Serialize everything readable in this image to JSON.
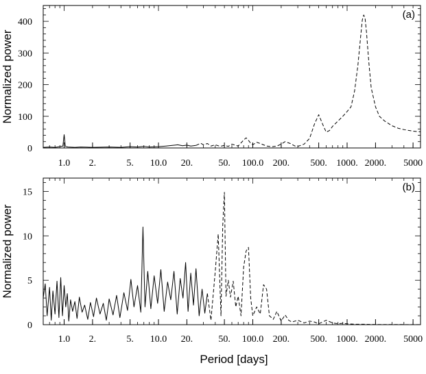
{
  "chart_data": [
    {
      "type": "line",
      "panel_label": "(a)",
      "xlabel": "",
      "ylabel": "Normalized power",
      "x_scale": "log",
      "xlim": [
        0.6,
        6000
      ],
      "ylim": [
        0,
        450
      ],
      "xticks": [
        1,
        2,
        5,
        10,
        20,
        50,
        100,
        200,
        500,
        1000,
        2000,
        5000
      ],
      "xtick_labels": [
        "1.0",
        "2.",
        "5.",
        "10.0",
        "20.",
        "50.",
        "100.0",
        "200.",
        "500.",
        "1000.",
        "2000.",
        "5000"
      ],
      "yticks": [
        0,
        100,
        200,
        300,
        400
      ],
      "ytick_labels": [
        "0",
        "100",
        "200",
        "300",
        "400"
      ],
      "grid": false,
      "series": [
        {
          "line_style": "solid",
          "x": [
            0.6,
            0.7,
            0.8,
            0.9,
            0.97,
            1.0,
            1.03,
            1.1,
            1.3,
            1.5,
            2,
            3,
            4,
            5,
            6,
            7,
            8,
            10,
            12,
            14,
            16,
            18,
            20,
            22,
            25
          ],
          "y": [
            2,
            3,
            2,
            4,
            6,
            42,
            5,
            3,
            2,
            3,
            2,
            3,
            2,
            4,
            3,
            5,
            3,
            4,
            6,
            8,
            10,
            7,
            9,
            6,
            8
          ]
        },
        {
          "line_style": "dashed",
          "x": [
            25,
            28,
            30,
            33,
            36,
            40,
            45,
            50,
            55,
            60,
            70,
            80,
            85,
            90,
            95,
            100,
            110,
            120,
            140,
            160,
            180,
            200,
            220,
            250,
            280,
            300,
            350,
            400,
            450,
            500,
            550,
            600,
            650,
            700,
            800,
            900,
            1000,
            1100,
            1200,
            1300,
            1400,
            1450,
            1500,
            1550,
            1600,
            1700,
            1800,
            2000,
            2200,
            2500,
            3000,
            3500,
            4000,
            5000,
            6000
          ],
          "y": [
            8,
            15,
            10,
            14,
            6,
            10,
            5,
            8,
            5,
            12,
            6,
            25,
            32,
            24,
            15,
            10,
            18,
            14,
            6,
            4,
            6,
            12,
            20,
            14,
            6,
            5,
            12,
            30,
            75,
            105,
            75,
            50,
            55,
            68,
            85,
            100,
            115,
            130,
            180,
            260,
            360,
            405,
            420,
            410,
            370,
            270,
            190,
            130,
            100,
            85,
            70,
            62,
            58,
            53,
            51
          ]
        }
      ]
    },
    {
      "type": "line",
      "panel_label": "(b)",
      "xlabel": "Period [days]",
      "ylabel": "Normalized power",
      "x_scale": "log",
      "xlim": [
        0.6,
        6000
      ],
      "ylim": [
        0,
        16.5
      ],
      "xticks": [
        1,
        2,
        5,
        10,
        20,
        50,
        100,
        200,
        500,
        1000,
        2000,
        5000
      ],
      "xtick_labels": [
        "1.0",
        "2.",
        "5.",
        "10.0",
        "20.",
        "50.",
        "100.0",
        "200.",
        "500.",
        "1000.",
        "2000.",
        "5000"
      ],
      "yticks": [
        0,
        5,
        10,
        15
      ],
      "ytick_labels": [
        "0",
        "5",
        "10",
        "15"
      ],
      "grid": false,
      "series": [
        {
          "line_style": "solid",
          "x": [
            0.6,
            0.63,
            0.66,
            0.7,
            0.73,
            0.76,
            0.8,
            0.84,
            0.88,
            0.92,
            0.96,
            1.0,
            1.04,
            1.08,
            1.12,
            1.17,
            1.23,
            1.3,
            1.37,
            1.45,
            1.55,
            1.65,
            1.78,
            1.9,
            2.05,
            2.2,
            2.4,
            2.6,
            2.8,
            3.0,
            3.3,
            3.6,
            3.9,
            4.3,
            4.7,
            5.1,
            5.5,
            6.0,
            6.5,
            6.85,
            7.2,
            7.7,
            8.3,
            9.0,
            9.8,
            10.6,
            11.5,
            12.5,
            13.5,
            14.6,
            15.8,
            17.0,
            18.2,
            19.4,
            20.6,
            22.0,
            23.5,
            25.0,
            27.0,
            29.0,
            31.0,
            33.0
          ],
          "y": [
            3.0,
            4.6,
            1.0,
            4.2,
            0.5,
            3.8,
            1.2,
            4.9,
            0.8,
            5.3,
            1.0,
            4.4,
            2.0,
            3.5,
            0.4,
            2.8,
            1.5,
            2.6,
            0.7,
            3.1,
            1.4,
            2.2,
            0.6,
            2.5,
            0.9,
            3.0,
            1.2,
            2.4,
            0.5,
            2.9,
            1.1,
            3.3,
            0.8,
            3.6,
            1.6,
            5.1,
            2.0,
            4.4,
            1.4,
            11.0,
            2.0,
            6.0,
            1.8,
            5.5,
            2.4,
            6.2,
            1.5,
            4.8,
            2.8,
            6.0,
            1.2,
            5.2,
            3.0,
            7.0,
            1.5,
            5.8,
            2.2,
            6.3,
            1.0,
            4.0,
            1.3,
            3.5
          ]
        },
        {
          "line_style": "dashed",
          "x": [
            33,
            36,
            40,
            43,
            46,
            48,
            50,
            52,
            55,
            58,
            62,
            66,
            70,
            75,
            80,
            85,
            90,
            95,
            100,
            110,
            120,
            130,
            140,
            150,
            165,
            180,
            200,
            220,
            240,
            260,
            300,
            350,
            400,
            450,
            500,
            600,
            700,
            800,
            900,
            1000,
            1200,
            1500,
            2000,
            3000,
            5000,
            6000
          ],
          "y": [
            3.5,
            0.5,
            6.0,
            10.2,
            1.0,
            11.1,
            14.9,
            3.2,
            5.0,
            3.1,
            4.9,
            2.0,
            3.2,
            1.0,
            6.5,
            8.3,
            8.7,
            3.0,
            1.0,
            2.0,
            1.2,
            4.5,
            4.0,
            1.0,
            0.6,
            1.5,
            0.4,
            1.1,
            0.5,
            0.3,
            0.5,
            0.2,
            0.4,
            0.3,
            0.1,
            0.5,
            0.2,
            0.1,
            0.15,
            0.1,
            0.05,
            0.05,
            0.02,
            0.02,
            0.01,
            0.01
          ]
        }
      ]
    }
  ]
}
